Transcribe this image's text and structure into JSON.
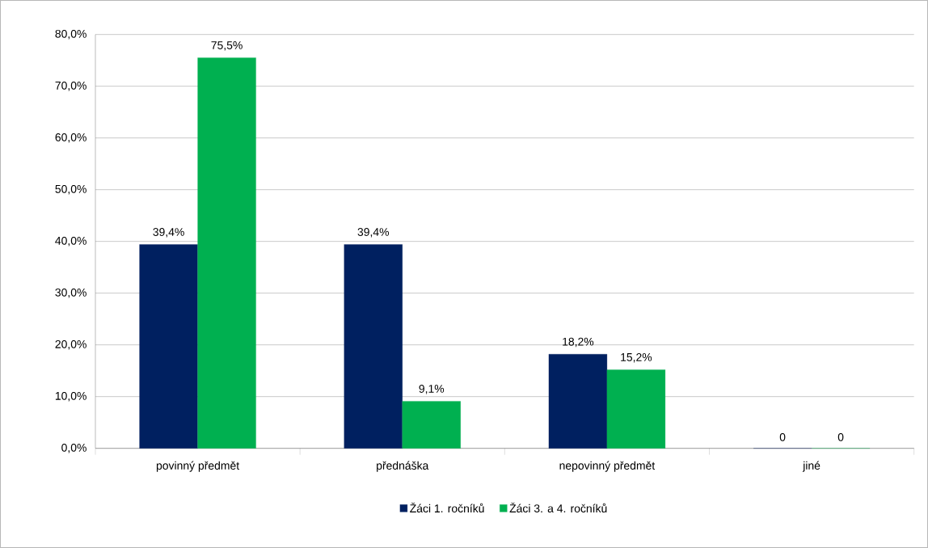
{
  "chart_data": {
    "type": "bar",
    "categories": [
      "povinný předmět",
      "přednáška",
      "nepovinný předmět",
      "jiné"
    ],
    "series": [
      {
        "name": "Žáci 1. ročníků",
        "color": "#002060",
        "values": [
          39.4,
          39.4,
          18.2,
          0
        ],
        "value_labels": [
          "39,4%",
          "39,4%",
          "18,2%",
          "0"
        ]
      },
      {
        "name": "Žáci 3. a 4. ročníků",
        "color": "#00b050",
        "values": [
          75.5,
          9.1,
          15.2,
          0
        ],
        "value_labels": [
          "75,5%",
          "9,1%",
          "15,2%",
          "0"
        ]
      }
    ],
    "ylim": [
      0,
      80
    ],
    "yticks": [
      {
        "value": 0,
        "label": "0,0%"
      },
      {
        "value": 10,
        "label": "10,0%"
      },
      {
        "value": 20,
        "label": "20,0%"
      },
      {
        "value": 30,
        "label": "30,0%"
      },
      {
        "value": 40,
        "label": "40,0%"
      },
      {
        "value": 50,
        "label": "50,0%"
      },
      {
        "value": 60,
        "label": "60,0%"
      },
      {
        "value": 70,
        "label": "70,0%"
      },
      {
        "value": 80,
        "label": "80,0%"
      }
    ],
    "grid": "y",
    "legend": "bottom"
  }
}
